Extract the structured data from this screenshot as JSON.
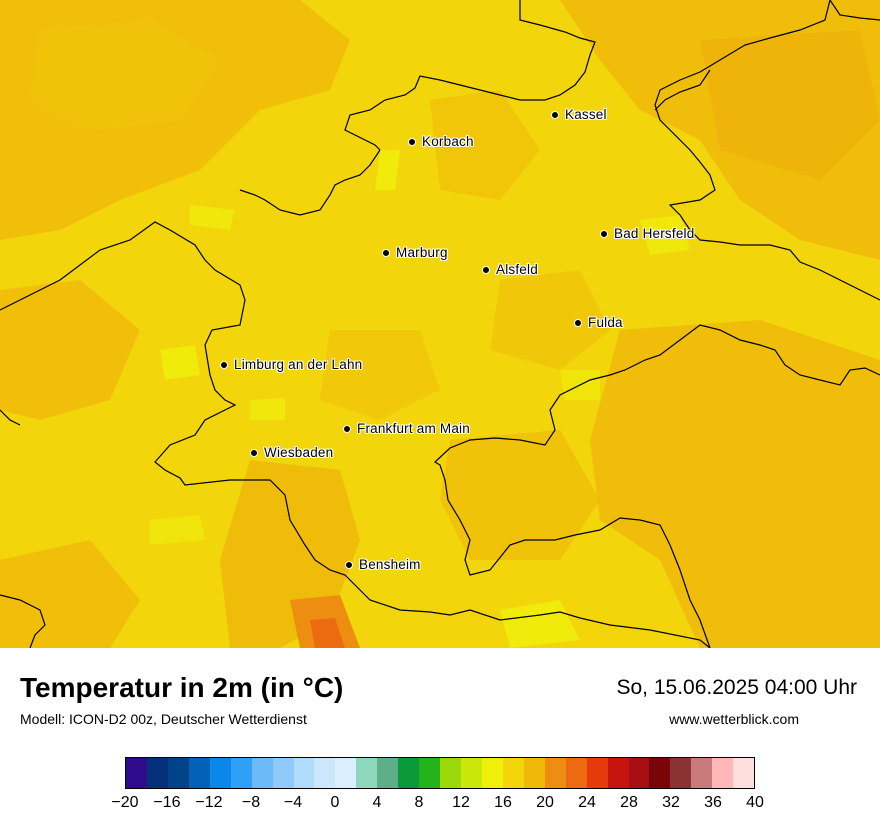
{
  "cities": [
    {
      "name": "Kassel"
    },
    {
      "name": "Korbach"
    },
    {
      "name": "Bad Hersfeld"
    },
    {
      "name": "Marburg"
    },
    {
      "name": "Alsfeld"
    },
    {
      "name": "Fulda"
    },
    {
      "name": "Limburg an der Lahn"
    },
    {
      "name": "Frankfurt am Main"
    },
    {
      "name": "Wiesbaden"
    },
    {
      "name": "Bensheim"
    }
  ],
  "footer": {
    "title": "Temperatur in 2m (in °C)",
    "subtitle": "Modell: ICON-D2 00z, Deutscher Wetterdienst",
    "datetime": "So, 15.06.2025 04:00 Uhr",
    "website": "www.wetterblick.com"
  },
  "legend": {
    "colors": [
      "#2e0b8a",
      "#05307a",
      "#024288",
      "#0461b8",
      "#0a87e8",
      "#2ea0f6",
      "#6cbaf8",
      "#8fcafa",
      "#b2dcfb",
      "#cce7fc",
      "#dbeefd",
      "#8fd8c0",
      "#5fae8a",
      "#0a9a3a",
      "#22b41a",
      "#9cd90a",
      "#cbe60a",
      "#eff00a",
      "#f2d50a",
      "#f0b90a",
      "#ee8e10",
      "#ec6a10",
      "#e63a0a",
      "#c8140f",
      "#a70f12",
      "#7a0508",
      "#8b3232",
      "#c97a7a",
      "#ffb7b7",
      "#ffdede"
    ],
    "ticks": [
      "−20",
      "−16",
      "−12",
      "−8",
      "−4",
      "0",
      "4",
      "8",
      "12",
      "16",
      "20",
      "24",
      "28",
      "32",
      "36",
      "40"
    ]
  }
}
